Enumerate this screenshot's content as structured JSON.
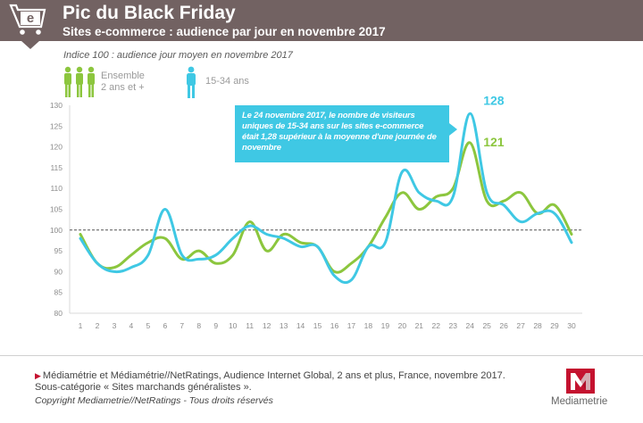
{
  "header": {
    "title": "Pic du Black Friday",
    "subtitle": "Sites e-commerce : audience par jour en novembre 2017",
    "cart_icon": "cart-e-icon",
    "background_color": "#726262"
  },
  "chart_data": {
    "type": "line",
    "title": "Pic du Black Friday",
    "subtitle": "Indice 100 : audience jour moyen en novembre 2017",
    "x": [
      1,
      2,
      3,
      4,
      5,
      6,
      7,
      8,
      9,
      10,
      11,
      12,
      13,
      14,
      15,
      16,
      17,
      18,
      19,
      20,
      21,
      22,
      23,
      24,
      25,
      26,
      27,
      28,
      29,
      30
    ],
    "x_tick_labels": [
      "1",
      "2",
      "3",
      "4",
      "5",
      "6",
      "7",
      "8",
      "9",
      "10",
      "11",
      "12",
      "13",
      "14",
      "15",
      "16",
      "17",
      "18",
      "19",
      "20",
      "21",
      "22",
      "23",
      "24",
      "25",
      "26",
      "27",
      "28",
      "29",
      "30"
    ],
    "ylim": [
      80,
      130
    ],
    "y_ticks": [
      80,
      85,
      90,
      95,
      100,
      105,
      110,
      115,
      120,
      125,
      130
    ],
    "reference_line": 100,
    "grid": false,
    "legend_position": "top-left",
    "series": [
      {
        "name": "Ensemble 2 ans et +",
        "color": "#8cc63e",
        "values": [
          99,
          92,
          91,
          94,
          97,
          98,
          93,
          95,
          92,
          94,
          102,
          95,
          99,
          97,
          96,
          90,
          92,
          96,
          103,
          109,
          105,
          108,
          110,
          121,
          107,
          107,
          109,
          104,
          106,
          99
        ]
      },
      {
        "name": "15-34 ans",
        "color": "#3fc8e4",
        "values": [
          98,
          92,
          90,
          91,
          94,
          105,
          94,
          93,
          94,
          98,
          101,
          99,
          98,
          96,
          96,
          89,
          88,
          96,
          97,
          114,
          109,
          107,
          108,
          128,
          109,
          106,
          102,
          104,
          104,
          97
        ]
      }
    ],
    "data_labels": [
      {
        "series": "15-34 ans",
        "x": 24,
        "text": "128"
      },
      {
        "series": "Ensemble 2 ans et +",
        "x": 24,
        "text": "121"
      }
    ],
    "annotation": "Le 24 novembre 2017, le nombre de visiteurs uniques de 15-34 ans sur les sites e-commerce était 1,28 supérieur à la moyenne d'une journée de novembre",
    "annotation_color": "#3fc8e4"
  },
  "legend": {
    "ensemble_label_line1": "Ensemble",
    "ensemble_label_line2": "2 ans et +",
    "youth_label": "15-34 ans",
    "ensemble_icon": "group-of-people-icon",
    "youth_icon": "person-icon"
  },
  "footer": {
    "source": "Médiamétrie et Médiamétrie//NetRatings, Audience Internet Global, 2 ans et plus, France, novembre 2017. Sous-catégorie « Sites marchands généralistes ».",
    "copyright": "Copyright Mediametrie//NetRatings  - Tous droits réservés",
    "logo_text": "Mediametrie",
    "logo_icon": "mediametrie-m-logo-icon",
    "logo_color": "#c4122f"
  }
}
